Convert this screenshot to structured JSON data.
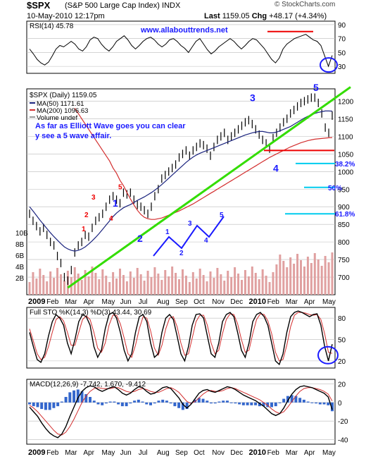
{
  "header": {
    "symbol": "$SPX",
    "name": "(S&P 500 Large Cap Index)",
    "exchange": "INDX",
    "date": "10-May-2010 12:17pm",
    "last_label": "Last",
    "last": "1159.05",
    "chg_label": "Chg",
    "chg": "+48.17 (+4.34%)",
    "brand": "© StockCharts.com"
  },
  "colors": {
    "price_bar": "#000000",
    "ma50": "#1a237e",
    "ma200": "#d32f2f",
    "trendline": "#33dd00",
    "fib": "#00ccee",
    "annotation_blue": "#1a1aff",
    "annotation_red": "#ee0000",
    "volume": "#e0a0a0",
    "histogram": "#3366cc"
  },
  "chart_data": [
    {
      "type": "line",
      "panel": "rsi",
      "legend": "RSI(14) 45.78",
      "watermark": "www.allabouttrends.net",
      "y_ticks": [
        30,
        50,
        70,
        90
      ],
      "ylim": [
        20,
        95
      ],
      "grid": true,
      "series": [
        {
          "name": "RSI(14)",
          "values": [
            55,
            48,
            40,
            35,
            32,
            36,
            45,
            55,
            60,
            58,
            62,
            66,
            62,
            55,
            52,
            58,
            68,
            72,
            70,
            62,
            56,
            52,
            58,
            66,
            70,
            74,
            68,
            60,
            55,
            60,
            66,
            70,
            72,
            68,
            62,
            58,
            62,
            68,
            70,
            66,
            60,
            56,
            50,
            58,
            66,
            70,
            62,
            54,
            48,
            52,
            58,
            62,
            66,
            70,
            66,
            60,
            55,
            60,
            66,
            70,
            68,
            62,
            56,
            48,
            40,
            35,
            42,
            55,
            62,
            66,
            70,
            72,
            74,
            76,
            72,
            68,
            66,
            60,
            45,
            30,
            45.78
          ]
        }
      ]
    },
    {
      "type": "line",
      "panel": "price",
      "title": "$SPX (Daily) 1159.05",
      "legend": [
        {
          "name": "MA(50) 1171.61"
        },
        {
          "name": "MA(200) 1096.63"
        },
        {
          "name": "Volume undef"
        }
      ],
      "y_ticks": [
        700,
        750,
        800,
        850,
        900,
        950,
        1000,
        1050,
        1100,
        1150,
        1200
      ],
      "ylim": [
        650,
        1235
      ],
      "volume_ticks": [
        "2B",
        "4B",
        "6B",
        "8B",
        "10B"
      ],
      "x_ticks": [
        "2009",
        "Feb",
        "Mar",
        "Apr",
        "May",
        "Jun",
        "Jul",
        "Aug",
        "Sep",
        "Oct",
        "Nov",
        "Dec",
        "2010",
        "Feb",
        "Mar",
        "Apr",
        "May"
      ],
      "close": [
        880,
        860,
        845,
        830,
        840,
        820,
        800,
        790,
        760,
        740,
        700,
        690,
        720,
        770,
        790,
        800,
        820,
        815,
        840,
        860,
        870,
        880,
        900,
        920,
        930,
        920,
        910,
        940,
        935,
        940,
        920,
        905,
        900,
        890,
        880,
        900,
        930,
        950,
        980,
        990,
        1000,
        1010,
        1020,
        1040,
        1050,
        1060,
        1045,
        1060,
        1070,
        1080,
        1075,
        1065,
        1045,
        1070,
        1090,
        1100,
        1110,
        1090,
        1100,
        1110,
        1120,
        1130,
        1140,
        1146,
        1135,
        1120,
        1105,
        1090,
        1080,
        1065,
        1095,
        1110,
        1125,
        1140,
        1150,
        1165,
        1175,
        1185,
        1195,
        1200,
        1205,
        1210,
        1210,
        1195,
        1165,
        1125,
        1110,
        1159
      ],
      "ma50": [
        900,
        888,
        875,
        862,
        850,
        838,
        826,
        815,
        805,
        795,
        786,
        780,
        776,
        774,
        776,
        780,
        786,
        794,
        803,
        813,
        824,
        836,
        848,
        860,
        872,
        882,
        890,
        897,
        902,
        906,
        912,
        918,
        923,
        928,
        934,
        940,
        947,
        955,
        963,
        972,
        981,
        990,
        999,
        1008,
        1017,
        1026,
        1034,
        1041,
        1047,
        1052,
        1056,
        1060,
        1064,
        1068,
        1072,
        1076,
        1080,
        1084,
        1088,
        1092,
        1096,
        1100,
        1104,
        1107,
        1110,
        1112,
        1114,
        1114,
        1112,
        1110,
        1110,
        1112,
        1116,
        1120,
        1124,
        1128,
        1134,
        1140,
        1146,
        1152,
        1157,
        1161,
        1165,
        1168,
        1170,
        1172,
        1172,
        1171.61
      ],
      "ma200": [
        1180,
        1165,
        1150,
        1135,
        1120,
        1105,
        1090,
        1075,
        1060,
        1045,
        1030,
        1010,
        995,
        975,
        960,
        940,
        922,
        905,
        890,
        878,
        870,
        866,
        864,
        864,
        866,
        868,
        872,
        876,
        880,
        884,
        888,
        893,
        898,
        903,
        908,
        914,
        920,
        926,
        932,
        938,
        944,
        950,
        956,
        962,
        968,
        974,
        980,
        986,
        992,
        998,
        1004,
        1010,
        1016,
        1022,
        1028,
        1034,
        1040,
        1045,
        1050,
        1055,
        1060,
        1065,
        1070,
        1074,
        1078,
        1082,
        1085,
        1088,
        1090,
        1092,
        1093,
        1094,
        1095,
        1096,
        1096.63
      ],
      "annotations": [
        "As far as Elliott Wave goes you can clearly see a 5 wave affair.",
        "1",
        "2",
        "3",
        "4",
        "5",
        "1",
        "2",
        "3",
        "4",
        "5",
        "1",
        "2",
        "3",
        "4",
        "5",
        "38.2%",
        "50%",
        "61.8%"
      ]
    },
    {
      "type": "line",
      "panel": "stochastic",
      "legend": "Full STO %K(14,3) %D(3) 43.44, 30.69",
      "y_ticks": [
        20,
        50,
        80
      ],
      "ylim": [
        10,
        95
      ],
      "series": [
        {
          "name": "%K",
          "values": [
            60,
            40,
            22,
            18,
            30,
            55,
            75,
            85,
            80,
            70,
            45,
            30,
            50,
            75,
            85,
            82,
            70,
            40,
            25,
            35,
            65,
            85,
            88,
            80,
            60,
            35,
            20,
            30,
            60,
            82,
            85,
            75,
            45,
            25,
            30,
            60,
            80,
            85,
            78,
            55,
            30,
            20,
            40,
            70,
            85,
            86,
            80,
            55,
            30,
            25,
            45,
            75,
            85,
            88,
            82,
            60,
            35,
            25,
            45,
            75,
            85,
            88,
            82,
            70,
            45,
            20,
            15,
            30,
            60,
            82,
            88,
            90,
            88,
            85,
            82,
            85,
            86,
            70,
            40,
            20,
            43.44
          ]
        },
        {
          "name": "%D",
          "values": [
            65,
            48,
            30,
            22,
            25,
            40,
            60,
            78,
            82,
            76,
            60,
            42,
            42,
            60,
            78,
            83,
            78,
            60,
            38,
            32,
            45,
            70,
            84,
            84,
            72,
            52,
            30,
            25,
            42,
            65,
            82,
            80,
            62,
            38,
            28,
            42,
            65,
            80,
            82,
            68,
            45,
            28,
            30,
            52,
            75,
            84,
            84,
            70,
            45,
            30,
            35,
            58,
            78,
            86,
            85,
            72,
            50,
            32,
            35,
            58,
            78,
            86,
            85,
            76,
            58,
            32,
            20,
            22,
            42,
            68,
            84,
            88,
            88,
            87,
            85,
            84,
            85,
            78,
            58,
            32,
            30.69
          ]
        }
      ]
    },
    {
      "type": "line",
      "panel": "macd",
      "legend": "MACD(12,26,9) -7.742, 1.670, -9.412",
      "y_ticks": [
        -40,
        -20,
        0,
        20
      ],
      "ylim": [
        -45,
        25
      ],
      "x_ticks": [
        "2009",
        "Feb",
        "Mar",
        "Apr",
        "May",
        "Jun",
        "Jul",
        "Aug",
        "Sep",
        "Oct",
        "Nov",
        "Dec",
        "2010",
        "Feb",
        "Mar",
        "Apr",
        "May"
      ],
      "series": [
        {
          "name": "MACD",
          "values": [
            -5,
            -10,
            -15,
            -22,
            -28,
            -33,
            -36,
            -38,
            -34,
            -26,
            -15,
            -5,
            5,
            12,
            16,
            18,
            17,
            14,
            12,
            14,
            16,
            17,
            14,
            10,
            8,
            10,
            14,
            17,
            16,
            12,
            9,
            10,
            13,
            16,
            17,
            15,
            10,
            5,
            -2,
            -6,
            -2,
            4,
            10,
            13,
            14,
            12,
            11,
            13,
            15,
            17,
            16,
            14,
            11,
            8,
            6,
            4,
            2,
            -1,
            -4,
            -8,
            -12,
            -14,
            -12,
            -6,
            2,
            9,
            14,
            17,
            18,
            17,
            16,
            14,
            12,
            10,
            6,
            -7.742
          ]
        },
        {
          "name": "Signal",
          "values": [
            -3,
            -6,
            -10,
            -15,
            -20,
            -25,
            -30,
            -34,
            -35,
            -32,
            -26,
            -18,
            -9,
            0,
            7,
            12,
            15,
            16,
            15,
            15,
            15,
            16,
            16,
            14,
            12,
            11,
            12,
            14,
            15,
            14,
            12,
            11,
            11,
            13,
            15,
            16,
            14,
            11,
            6,
            1,
            -1,
            1,
            5,
            9,
            12,
            13,
            12,
            12,
            13,
            15,
            16,
            15,
            13,
            11,
            9,
            7,
            5,
            3,
            0,
            -3,
            -7,
            -10,
            -12,
            -10,
            -5,
            1,
            7,
            12,
            15,
            16,
            16,
            15,
            14,
            12,
            9,
            1.67
          ]
        },
        {
          "name": "Histogram",
          "values": [
            -2,
            -4,
            -5,
            -7,
            -8,
            -8,
            -6,
            -4,
            1,
            6,
            11,
            13,
            14,
            12,
            9,
            6,
            2,
            -2,
            -3,
            -1,
            1,
            1,
            -2,
            -4,
            -4,
            -1,
            2,
            3,
            1,
            -2,
            -3,
            -1,
            2,
            3,
            2,
            -1,
            -4,
            -6,
            -8,
            -7,
            -1,
            3,
            5,
            4,
            2,
            -1,
            -1,
            1,
            2,
            2,
            0,
            -1,
            -2,
            -3,
            -3,
            -3,
            -3,
            -4,
            -4,
            -5,
            -5,
            -4,
            0,
            4,
            7,
            8,
            7,
            5,
            3,
            1,
            0,
            -1,
            -2,
            -2,
            -3,
            -9.412
          ]
        }
      ]
    }
  ]
}
